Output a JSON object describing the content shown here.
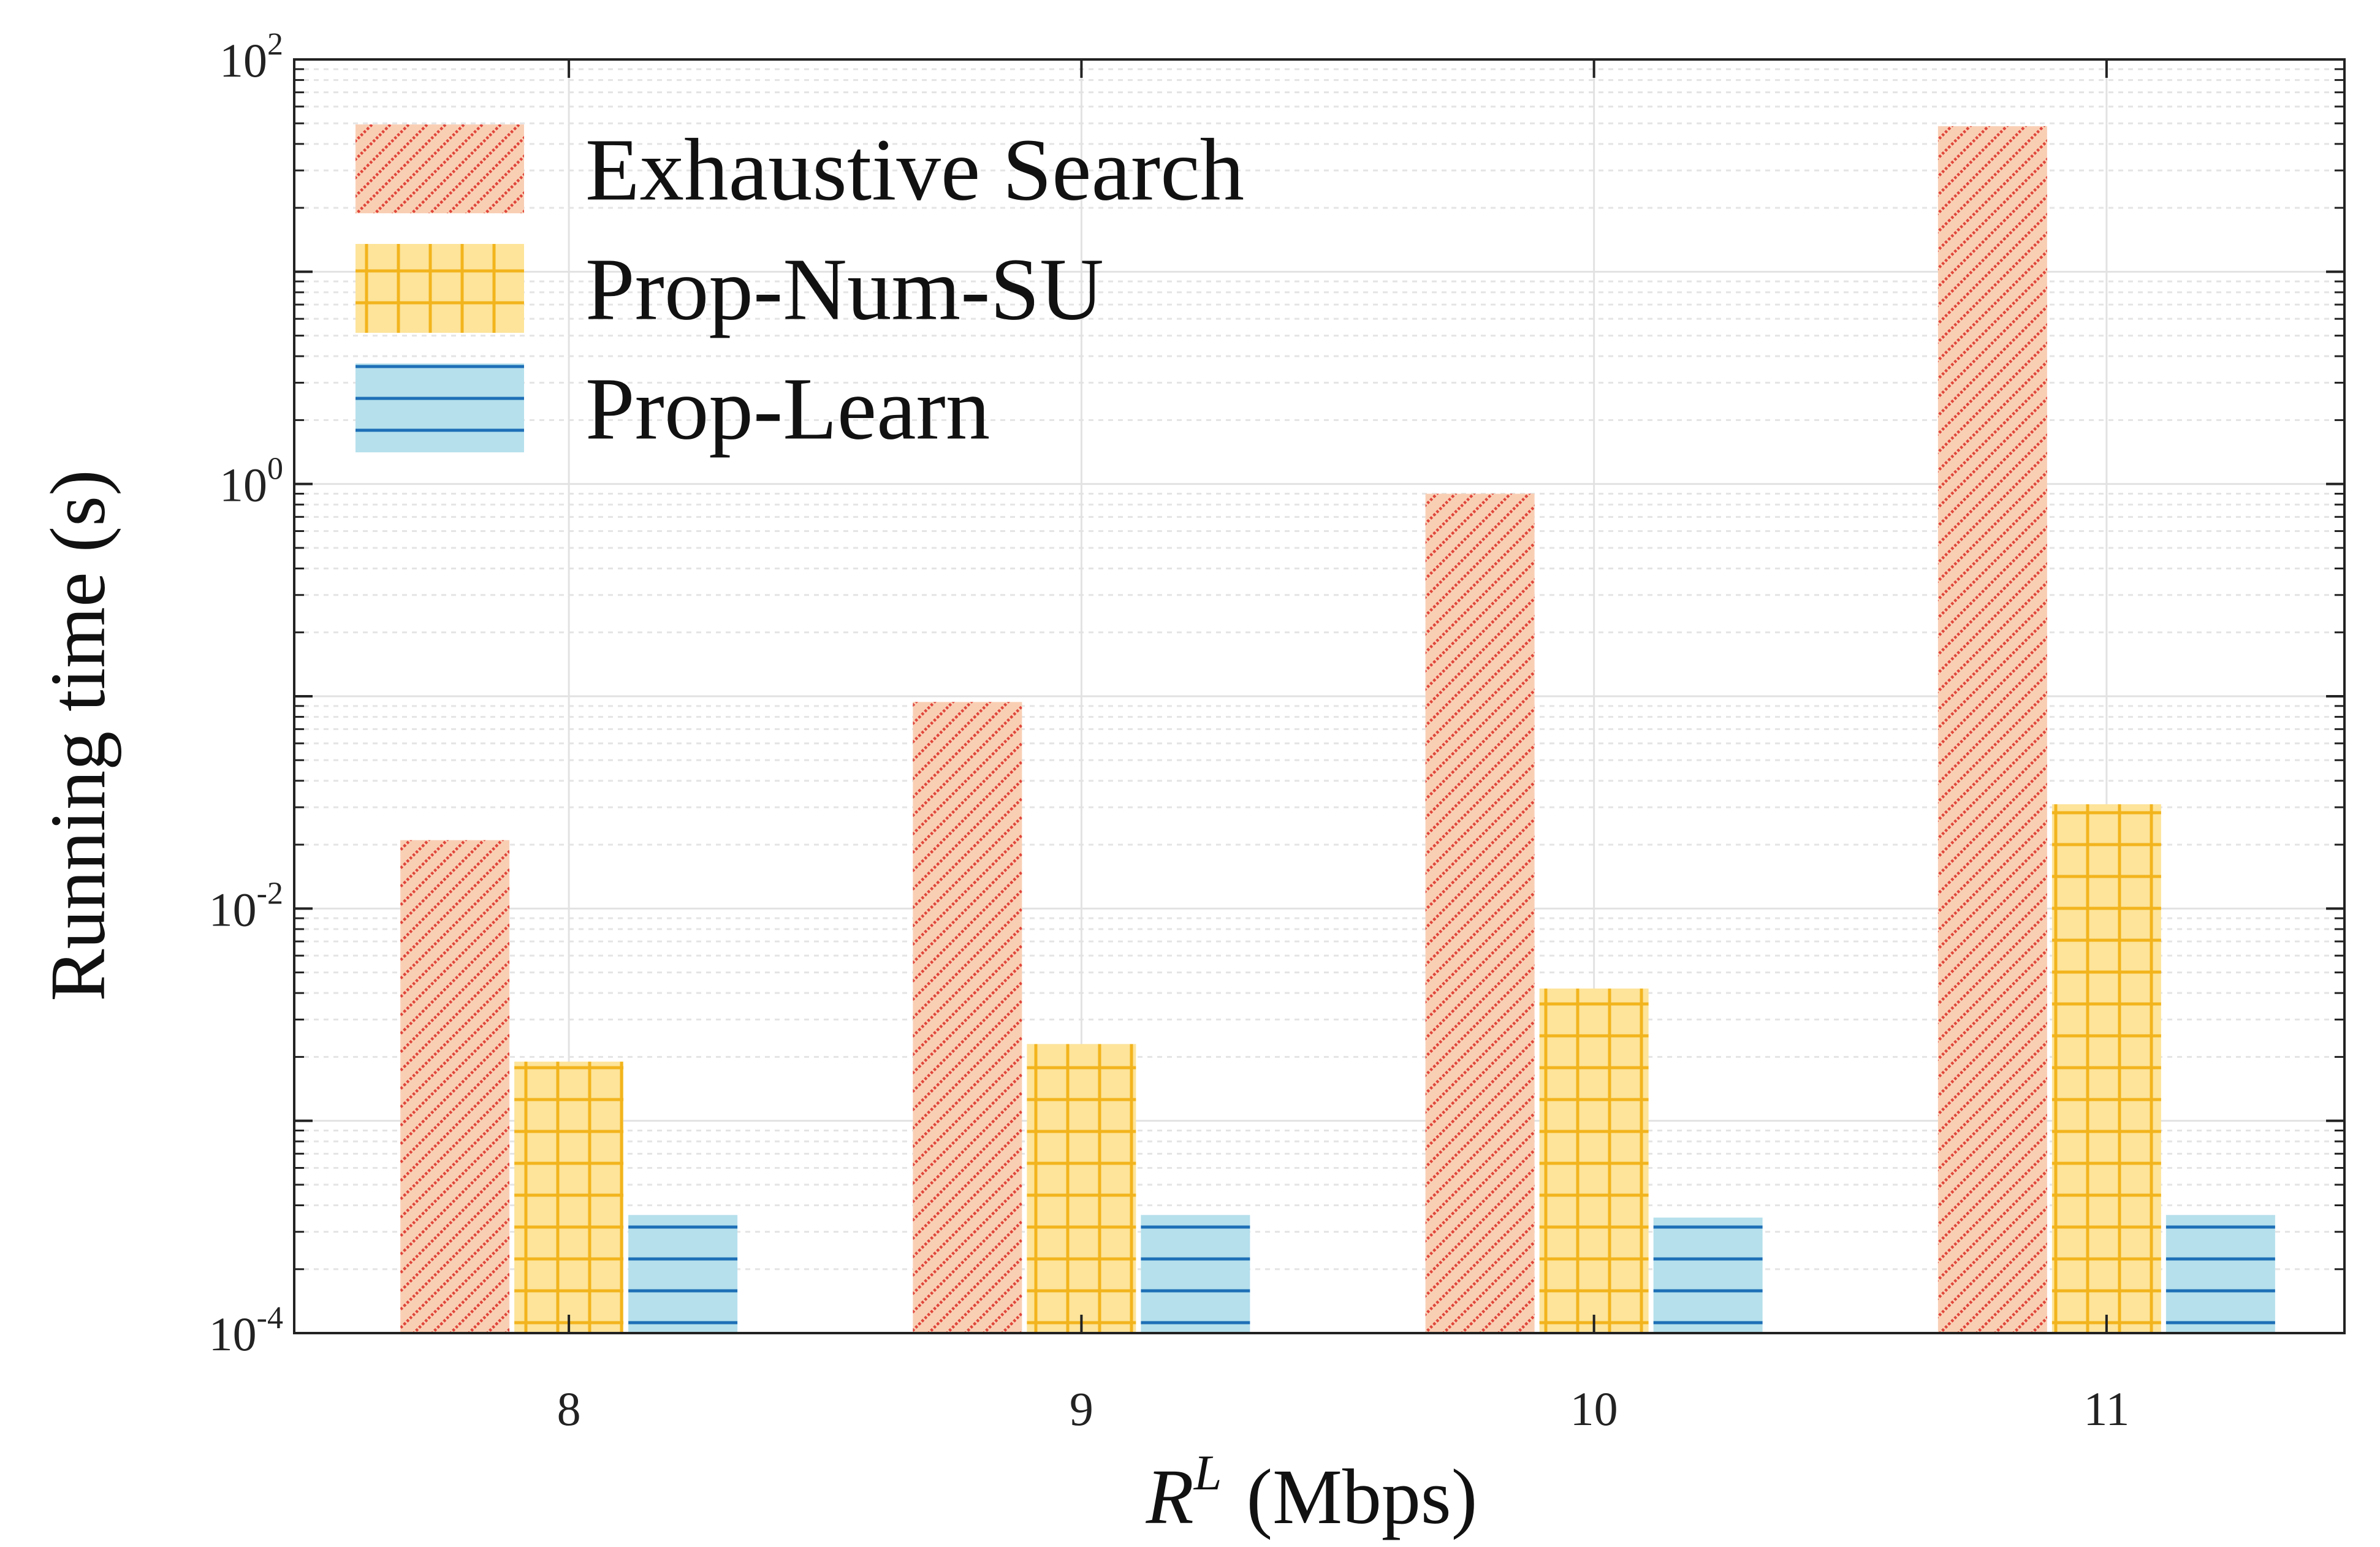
{
  "chart_data": {
    "type": "bar",
    "categories": [
      "8",
      "9",
      "10",
      "11"
    ],
    "series": [
      {
        "name": "Exhaustive Search",
        "values": [
          0.021,
          0.094,
          0.9,
          48.5
        ],
        "fill": "#f9cfb4",
        "hatch": "#e0453a",
        "pattern": "diagonal"
      },
      {
        "name": "Prop-Num-SU",
        "values": [
          0.0019,
          0.0023,
          0.0042,
          0.031
        ],
        "fill": "#fde49a",
        "hatch": "#f2b41d",
        "pattern": "grid"
      },
      {
        "name": "Prop-Learn",
        "values": [
          0.00036,
          0.00036,
          0.00035,
          0.00036
        ],
        "fill": "#b5e0ec",
        "hatch": "#1d6fb6",
        "pattern": "horizontal"
      }
    ],
    "xlabel": {
      "base": "R",
      "sup": "L",
      "unit": "(Mbps)"
    },
    "ylabel": "Running time (s)",
    "yscale": "log",
    "ylim": [
      0.0001,
      100
    ],
    "yticks": [
      {
        "base": "10",
        "exp": "-4"
      },
      {
        "base": "10",
        "exp": "-2"
      },
      {
        "base": "10",
        "exp": "0"
      },
      {
        "base": "10",
        "exp": "2"
      }
    ],
    "grid": true,
    "legend_position": "top-left"
  }
}
